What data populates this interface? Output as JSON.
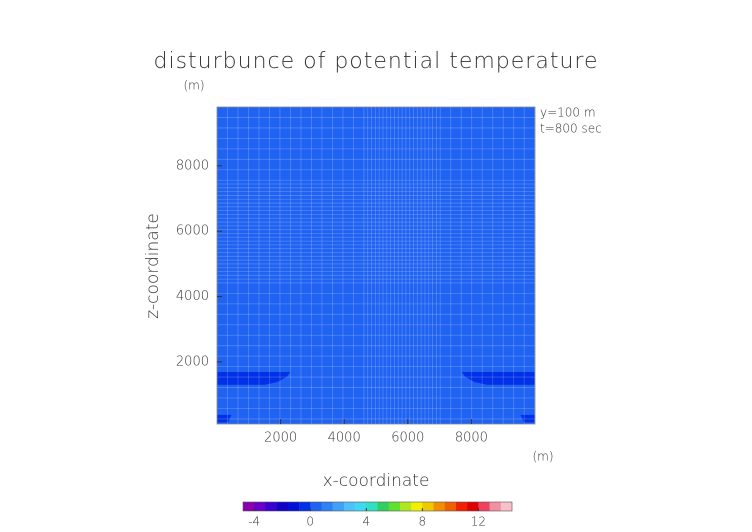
{
  "chart_data": {
    "type": "contour",
    "title": "disturbunce of potential temperature",
    "y_unit": "(m)",
    "x_unit": "(m)",
    "xlabel": "x-coordinate",
    "ylabel": "z-coordinate",
    "annotations": [
      "y=100 m",
      "t=800 sec"
    ],
    "xlim": [
      0,
      10000
    ],
    "ylim": [
      100,
      9800
    ],
    "xticks": [
      2000,
      4000,
      6000,
      8000
    ],
    "yticks": [
      2000,
      4000,
      6000,
      8000
    ],
    "field_value": 0.4,
    "regions": [
      {
        "value": -0.4,
        "x": [
          0,
          1500,
          1900,
          2200,
          2300,
          0
        ],
        "z": [
          1300,
          1300,
          1380,
          1550,
          1690,
          1690
        ]
      },
      {
        "value": -0.4,
        "x": [
          10000,
          8500,
          8100,
          7800,
          7700,
          10000
        ],
        "z": [
          1300,
          1300,
          1380,
          1550,
          1690,
          1690
        ]
      },
      {
        "value": -0.4,
        "x": [
          0,
          350,
          450,
          0
        ],
        "z": [
          150,
          150,
          380,
          380
        ]
      },
      {
        "value": -0.4,
        "x": [
          10000,
          9650,
          9550,
          10000
        ],
        "z": [
          150,
          150,
          380,
          380
        ]
      }
    ],
    "colorbar": {
      "lim": [
        -4.8,
        14.4
      ],
      "ticks": [
        -4,
        0,
        4,
        8,
        12
      ],
      "colors": [
        "#8a00b0",
        "#6a00c8",
        "#3a00d0",
        "#1000c8",
        "#0010d8",
        "#0030e8",
        "#2063f2",
        "#2f80f5",
        "#40a0f8",
        "#50c0fa",
        "#40d8f0",
        "#30e0c0",
        "#30d060",
        "#60e030",
        "#b0e820",
        "#f0f000",
        "#f0c800",
        "#f09000",
        "#f06000",
        "#f02000",
        "#e00000",
        "#f04060",
        "#f090a0",
        "#f8c0c8"
      ]
    }
  }
}
